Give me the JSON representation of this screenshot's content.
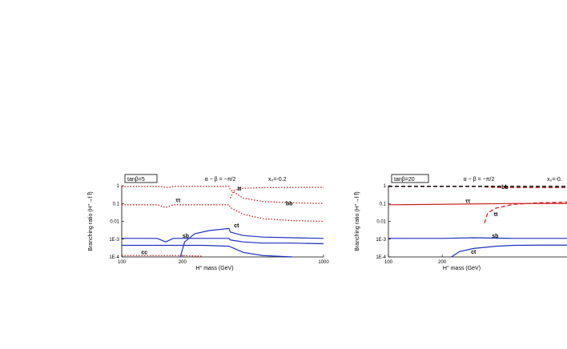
{
  "chart_data": [
    {
      "type": "line",
      "tag": "tanβ=5",
      "header": "α − β = −π/2",
      "header_right": "x₀=-0.2",
      "xlabel": "H° mass (GeV)",
      "ylabel": "Branching ratio (H°→f f̄)",
      "xscale": "log",
      "yscale": "log",
      "xlim": [
        100,
        1000
      ],
      "ylim": [
        0.0001,
        1
      ],
      "x_ticks": [
        "100",
        "200",
        "1000"
      ],
      "y_ticks": [
        "1",
        "0.1",
        "0.01",
        "1E-3",
        "1E-4"
      ],
      "colors": {
        "bottom": "#d22020",
        "top": "#1a2fc0"
      },
      "series": [
        {
          "name": "tt",
          "color": "#d22020",
          "dash": "dotted",
          "points": [
            [
              345,
              0.2
            ],
            [
              360,
              0.55
            ],
            [
              400,
              0.72
            ],
            [
              500,
              0.78
            ],
            [
              700,
              0.8
            ],
            [
              1000,
              0.82
            ]
          ],
          "label_at": [
            375,
            0.55
          ]
        },
        {
          "name": "bb",
          "color": "#d22020",
          "dash": "dotted",
          "points": [
            [
              100,
              0.9
            ],
            [
              150,
              0.92
            ],
            [
              170,
              0.8
            ],
            [
              180,
              0.92
            ],
            [
              250,
              0.92
            ],
            [
              340,
              0.92
            ],
            [
              345,
              0.6
            ],
            [
              400,
              0.2
            ],
            [
              500,
              0.13
            ],
            [
              700,
              0.11
            ],
            [
              1000,
              0.1
            ]
          ],
          "label_at": [
            650,
            0.08
          ]
        },
        {
          "name": "ττ",
          "color": "#d22020",
          "dash": "dotted",
          "points": [
            [
              100,
              0.085
            ],
            [
              150,
              0.085
            ],
            [
              165,
              0.06
            ],
            [
              180,
              0.085
            ],
            [
              250,
              0.085
            ],
            [
              340,
              0.085
            ],
            [
              345,
              0.06
            ],
            [
              400,
              0.025
            ],
            [
              500,
              0.014
            ],
            [
              700,
              0.011
            ],
            [
              1000,
              0.01
            ]
          ],
          "label_at": [
            185,
            0.12
          ]
        },
        {
          "name": "sb",
          "color": "#1a2fc0",
          "dash": "solid",
          "points": [
            [
              100,
              0.0011
            ],
            [
              150,
              0.0011
            ],
            [
              165,
              0.0007
            ],
            [
              180,
              0.0011
            ],
            [
              250,
              0.0011
            ],
            [
              340,
              0.0011
            ],
            [
              345,
              0.0009
            ],
            [
              400,
              0.0007
            ],
            [
              500,
              0.0006
            ],
            [
              700,
              0.0006
            ],
            [
              1000,
              0.00055
            ]
          ],
          "label_at": [
            200,
            0.0012
          ]
        },
        {
          "name": "ct",
          "color": "#1a2fc0",
          "dash": "solid",
          "points": [
            [
              195,
              0.0001
            ],
            [
              205,
              0.0007
            ],
            [
              230,
              0.002
            ],
            [
              270,
              0.003
            ],
            [
              340,
              0.004
            ],
            [
              345,
              0.0025
            ],
            [
              400,
              0.0016
            ],
            [
              500,
              0.0013
            ],
            [
              700,
              0.0012
            ],
            [
              1000,
              0.0011
            ]
          ],
          "label_at": [
            360,
            0.0045
          ]
        },
        {
          "name": "",
          "color": "#1a2fc0",
          "dash": "solid",
          "points": [
            [
              100,
              0.00045
            ],
            [
              150,
              0.00045
            ],
            [
              180,
              0.00045
            ],
            [
              250,
              0.00045
            ],
            [
              340,
              0.0004
            ],
            [
              400,
              0.00018
            ],
            [
              500,
              0.00012
            ],
            [
              700,
              0.0001
            ]
          ],
          "label_at": null
        },
        {
          "name": "cc",
          "color": "#d22020",
          "dash": "dotted",
          "points": [
            [
              100,
              0.00012
            ],
            [
              150,
              0.00012
            ],
            [
              200,
              0.00012
            ],
            [
              250,
              0.00011
            ]
          ],
          "label_at": [
            125,
            0.00014
          ]
        }
      ]
    },
    {
      "type": "line",
      "tag": "tanβ=20",
      "header": "α − β = −π/2",
      "header_right": "x₀=-0.",
      "xlabel": "H° mass (GeV)",
      "ylabel": "Branching ratio (H°→f f̄)",
      "xscale": "log",
      "yscale": "log",
      "xlim": [
        100,
        1000
      ],
      "ylim": [
        0.0001,
        1
      ],
      "x_ticks": [
        "100",
        "200"
      ],
      "y_ticks": [
        "1",
        "0.1",
        "0.01",
        "1E-3",
        "1E-4"
      ],
      "colors": {
        "bottom": "#d22020",
        "top": "#1a2fc0"
      },
      "series": [
        {
          "name": "bb",
          "color": "#d22020",
          "dash": "dashed",
          "points": [
            [
              100,
              0.9
            ],
            [
              200,
              0.9
            ],
            [
              340,
              0.9
            ],
            [
              345,
              0.85
            ],
            [
              400,
              0.8
            ],
            [
              500,
              0.78
            ],
            [
              700,
              0.78
            ],
            [
              1000,
              0.78
            ]
          ],
          "label_at": [
            430,
            0.65
          ]
        },
        {
          "name": "",
          "color": "#000000",
          "dash": "dashed",
          "points": [
            [
              100,
              0.92
            ],
            [
              300,
              0.92
            ],
            [
              700,
              0.92
            ],
            [
              1000,
              0.92
            ]
          ],
          "label_at": null
        },
        {
          "name": "ττ",
          "color": "#d22020",
          "dash": "solid",
          "points": [
            [
              100,
              0.085
            ],
            [
              200,
              0.09
            ],
            [
              300,
              0.095
            ],
            [
              500,
              0.1
            ],
            [
              700,
              0.1
            ],
            [
              1000,
              0.1
            ]
          ],
          "label_at": [
            270,
            0.11
          ]
        },
        {
          "name": "tt",
          "color": "#d22020",
          "dash": "dashed",
          "points": [
            [
              345,
              0.008
            ],
            [
              360,
              0.03
            ],
            [
              400,
              0.055
            ],
            [
              500,
              0.09
            ],
            [
              700,
              0.11
            ],
            [
              1000,
              0.12
            ]
          ],
          "label_at": [
            390,
            0.02
          ]
        },
        {
          "name": "sb",
          "color": "#1a2fc0",
          "dash": "solid",
          "points": [
            [
              100,
              0.0011
            ],
            [
              200,
              0.0011
            ],
            [
              300,
              0.0012
            ],
            [
              500,
              0.0011
            ],
            [
              700,
              0.0011
            ],
            [
              1000,
              0.0011
            ]
          ],
          "label_at": [
            380,
            0.0012
          ]
        },
        {
          "name": "ct",
          "color": "#1a2fc0",
          "dash": "solid",
          "points": [
            [
              225,
              0.0001
            ],
            [
              250,
              0.0002
            ],
            [
              300,
              0.0003
            ],
            [
              400,
              0.0004
            ],
            [
              500,
              0.00045
            ],
            [
              700,
              0.00046
            ],
            [
              1000,
              0.00046
            ]
          ],
          "label_at": [
            290,
            0.00015
          ]
        }
      ]
    }
  ]
}
